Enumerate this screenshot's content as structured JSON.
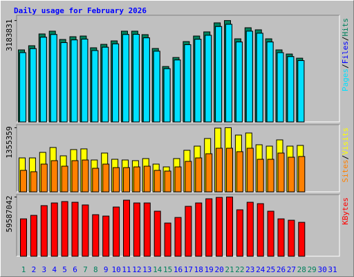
{
  "chart_data": [
    {
      "type": "bar",
      "title": "Daily usage for February 2026",
      "legend_separator": "/",
      "ylim": [
        0,
        3350000
      ],
      "yticks": [
        {
          "value": 3183831,
          "label": "3183831"
        }
      ],
      "series": [
        {
          "name": "Hits",
          "color": "#00805c",
          "values": [
            2262000,
            2393000,
            2763000,
            2850000,
            2589000,
            2676000,
            2697000,
            2328000,
            2436000,
            2545000,
            2850000,
            2850000,
            2741000,
            2306000,
            1740000,
            2023000,
            2523000,
            2697000,
            2828000,
            3111000,
            3183831,
            2610000,
            2958000,
            2893000,
            2610000,
            2262000,
            2132000,
            2001000,
            null,
            null,
            null
          ]
        },
        {
          "name": "Files",
          "color": "#0000ff",
          "values": [
            2175000,
            2300000,
            2660000,
            2745000,
            2490000,
            2575000,
            2600000,
            2240000,
            2345000,
            2450000,
            2745000,
            2750000,
            2640000,
            2220000,
            1670000,
            1945000,
            2425000,
            2595000,
            2720000,
            2995000,
            3065000,
            2510000,
            2850000,
            2785000,
            2510000,
            2175000,
            2050000,
            1925000,
            null,
            null,
            null
          ]
        },
        {
          "name": "Pages",
          "color": "#00e0ff",
          "values": [
            2175000,
            2300000,
            2660000,
            2745000,
            2490000,
            2575000,
            2600000,
            2240000,
            2345000,
            2450000,
            2745000,
            2750000,
            2640000,
            2220000,
            1670000,
            1945000,
            2425000,
            2595000,
            2720000,
            2995000,
            3065000,
            2510000,
            2850000,
            2785000,
            2510000,
            2175000,
            2050000,
            1925000,
            null,
            null,
            null
          ]
        }
      ]
    },
    {
      "type": "bar",
      "legend_separator": "/",
      "ylim": [
        0,
        1420000
      ],
      "yticks": [
        {
          "value": 1355359,
          "label": "1355359"
        }
      ],
      "series": [
        {
          "name": "Visits",
          "color": "#ffff00",
          "values": [
            717000,
            717000,
            834000,
            937000,
            761000,
            893000,
            908000,
            673000,
            820000,
            688000,
            673000,
            659000,
            703000,
            586000,
            527000,
            703000,
            878000,
            966000,
            1127000,
            1347000,
            1355359,
            1200000,
            1244000,
            995000,
            966000,
            1098000,
            966000,
            981000,
            null,
            null,
            null
          ]
        },
        {
          "name": "Sites",
          "color": "#ff8000",
          "values": [
            454000,
            425000,
            586000,
            659000,
            542000,
            659000,
            673000,
            498000,
            586000,
            512000,
            512000,
            527000,
            542000,
            454000,
            439000,
            527000,
            644000,
            717000,
            805000,
            922000,
            922000,
            849000,
            922000,
            688000,
            688000,
            820000,
            732000,
            747000,
            null,
            null,
            null
          ]
        }
      ]
    },
    {
      "type": "bar",
      "ylim": [
        0,
        62000000
      ],
      "yticks": [
        {
          "value": 59587042,
          "label": "59587042"
        }
      ],
      "categories": [
        "1",
        "2",
        "3",
        "4",
        "5",
        "6",
        "7",
        "8",
        "9",
        "10",
        "11",
        "12",
        "13",
        "14",
        "15",
        "16",
        "17",
        "18",
        "19",
        "20",
        "21",
        "22",
        "23",
        "24",
        "25",
        "26",
        "27",
        "28",
        "29",
        "30",
        "31"
      ],
      "category_colors": [
        "#00805c",
        "#0000ff",
        "#0000ff",
        "#0000ff",
        "#0000ff",
        "#0000ff",
        "#00805c",
        "#00805c",
        "#0000ff",
        "#0000ff",
        "#0000ff",
        "#0000ff",
        "#0000ff",
        "#00805c",
        "#00805c",
        "#0000ff",
        "#0000ff",
        "#0000ff",
        "#0000ff",
        "#0000ff",
        "#00805c",
        "#00805c",
        "#0000ff",
        "#0000ff",
        "#0000ff",
        "#0000ff",
        "#0000ff",
        "#00805c",
        "#00805c",
        "#0000ff",
        "#0000ff"
      ],
      "series": [
        {
          "name": "KBytes",
          "color": "#ff0000",
          "values": [
            37600000,
            41100000,
            50900000,
            53600000,
            55000000,
            54300000,
            51600000,
            41800000,
            40400000,
            49500000,
            56400000,
            53600000,
            53600000,
            45300000,
            33400000,
            39000000,
            50200000,
            53600000,
            57800000,
            59200000,
            59587042,
            46700000,
            54300000,
            52900000,
            45300000,
            37600000,
            36200000,
            34100000,
            null,
            null,
            null
          ]
        }
      ]
    }
  ]
}
